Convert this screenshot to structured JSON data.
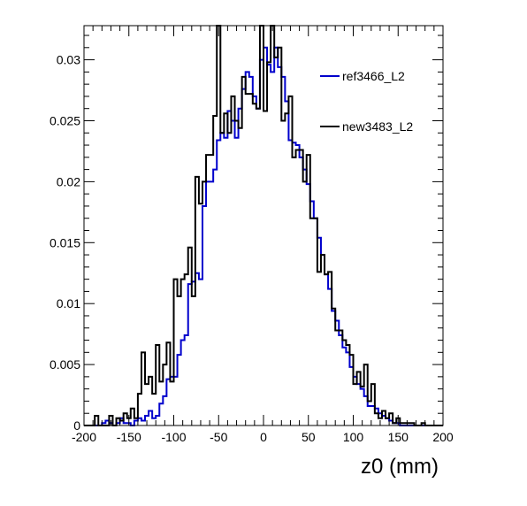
{
  "chart_data": {
    "type": "line",
    "drawstyle": "steps",
    "title": "",
    "xlabel": "z0 (mm)",
    "ylabel": "",
    "xlim": [
      -200,
      200
    ],
    "ylim": [
      0,
      0.0328
    ],
    "x_ticks": [
      -200,
      -150,
      -100,
      -50,
      0,
      50,
      100,
      150,
      200
    ],
    "x_tick_labels": [
      "-200",
      "-150",
      "-100",
      "-50",
      "0",
      "50",
      "100",
      "150",
      "200"
    ],
    "y_ticks": [
      0,
      0.005,
      0.01,
      0.015,
      0.02,
      0.025,
      0.03
    ],
    "y_tick_labels": [
      "0",
      "0.005",
      "0.01",
      "0.015",
      "0.02",
      "0.025",
      "0.03"
    ],
    "grid": false,
    "legend_position": "top-right",
    "bin_edges_start": -200,
    "bin_width": 4,
    "series": [
      {
        "name": "ref3466_L2",
        "color": "#0000cc",
        "values": [
          0,
          0,
          0,
          0,
          0,
          0.0002,
          0.0004,
          0.0002,
          0,
          0.0002,
          0.0006,
          0.0002,
          0.0002,
          0,
          0.0004,
          0.0006,
          0.0004,
          0.0008,
          0.0012,
          0.0006,
          0.0008,
          0.0018,
          0.0024,
          0.0038,
          0.004,
          0.004,
          0.0058,
          0.007,
          0.0074,
          0.0116,
          0.0118,
          0.0125,
          0.012,
          0.018,
          0.02,
          0.02,
          0.021,
          0.0234,
          0.024,
          0.0236,
          0.0258,
          0.025,
          0.0236,
          0.026,
          0.0276,
          0.029,
          0.0286,
          0.027,
          0.026,
          0.03,
          0.031,
          0.0296,
          0.029,
          0.031,
          0.0294,
          0.0286,
          0.0266,
          0.0234,
          0.0232,
          0.023,
          0.022,
          0.021,
          0.0198,
          0.0184,
          0.017,
          0.0154,
          0.014,
          0.0124,
          0.0112,
          0.0094,
          0.0086,
          0.0074,
          0.0064,
          0.006,
          0.0048,
          0.004,
          0.0034,
          0.003,
          0.0024,
          0.0016,
          0.0016,
          0.0014,
          0.001,
          0.0008,
          0.0006,
          0.0004,
          0.0002,
          0.0002,
          0,
          0,
          0,
          0,
          0,
          0,
          0,
          0,
          0,
          0,
          0,
          0
        ]
      },
      {
        "name": "new3483_L2",
        "color": "#000000",
        "values": [
          0,
          0,
          0,
          0.0008,
          0,
          0,
          0,
          0.0008,
          0,
          0.0006,
          0.0004,
          0.001,
          0.0006,
          0.0014,
          0.0006,
          0.0026,
          0.006,
          0.0034,
          0.004,
          0.0026,
          0.0066,
          0.0036,
          0.005,
          0.0068,
          0.0036,
          0.012,
          0.0106,
          0.012,
          0.0124,
          0.0146,
          0.0106,
          0.0204,
          0.0182,
          0.02,
          0.0222,
          0.0222,
          0.0254,
          0.034,
          0.024,
          0.0256,
          0.024,
          0.027,
          0.025,
          0.0244,
          0.0286,
          0.0272,
          0.0272,
          0.0264,
          0.026,
          0.0328,
          0.0258,
          0.0298,
          0.033,
          0.0302,
          0.031,
          0.025,
          0.0256,
          0.027,
          0.022,
          0.0226,
          0.0226,
          0.02,
          0.0222,
          0.017,
          0.017,
          0.0126,
          0.014,
          0.0124,
          0.0126,
          0.0096,
          0.0078,
          0.0078,
          0.007,
          0.0066,
          0.0058,
          0.0034,
          0.0044,
          0.0032,
          0.005,
          0.002,
          0.0034,
          0.001,
          0.0006,
          0.0012,
          0.0006,
          0.001,
          0.0002,
          0.0006,
          0.0002,
          0.0002,
          0.0002,
          0.0002,
          0,
          0,
          0.0002,
          0,
          0,
          0,
          0,
          0
        ]
      }
    ]
  }
}
